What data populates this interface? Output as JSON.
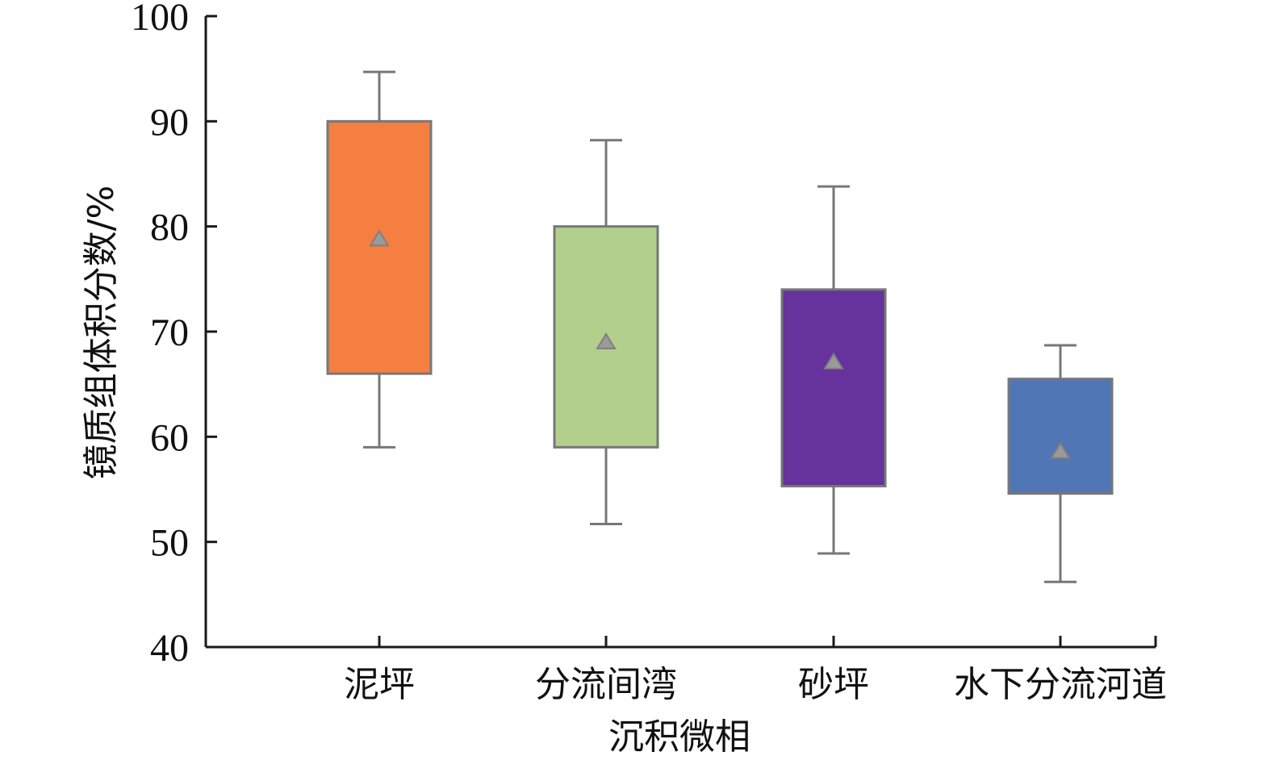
{
  "chart_data": {
    "type": "box",
    "xlabel": "沉积微相",
    "ylabel": "镜质组体积分数/%",
    "ylim": [
      40,
      100
    ],
    "yticks": [
      40,
      50,
      60,
      70,
      80,
      90,
      100
    ],
    "grid": false,
    "mean_marker": "triangle",
    "categories": [
      "泥坪",
      "分流间湾",
      "砂坪",
      "水下分流河道"
    ],
    "boxes": [
      {
        "category": "泥坪",
        "min": 59.0,
        "q1": 66.0,
        "q3": 90.0,
        "max": 94.7,
        "mean": 78.8,
        "color": "#F47F41"
      },
      {
        "category": "分流间湾",
        "min": 51.7,
        "q1": 59.0,
        "q3": 80.0,
        "max": 88.2,
        "mean": 69.0,
        "color": "#B2CF8B"
      },
      {
        "category": "砂坪",
        "min": 48.9,
        "q1": 55.3,
        "q3": 74.0,
        "max": 83.8,
        "mean": 67.1,
        "color": "#65339B"
      },
      {
        "category": "水下分流河道",
        "min": 46.2,
        "q1": 54.6,
        "q3": 65.5,
        "max": 68.7,
        "mean": 58.6,
        "color": "#5176B6"
      }
    ],
    "colors": {
      "axis": "#1a1a1a",
      "whisker": "#777777",
      "mean_marker": "#9a9a9a"
    }
  }
}
